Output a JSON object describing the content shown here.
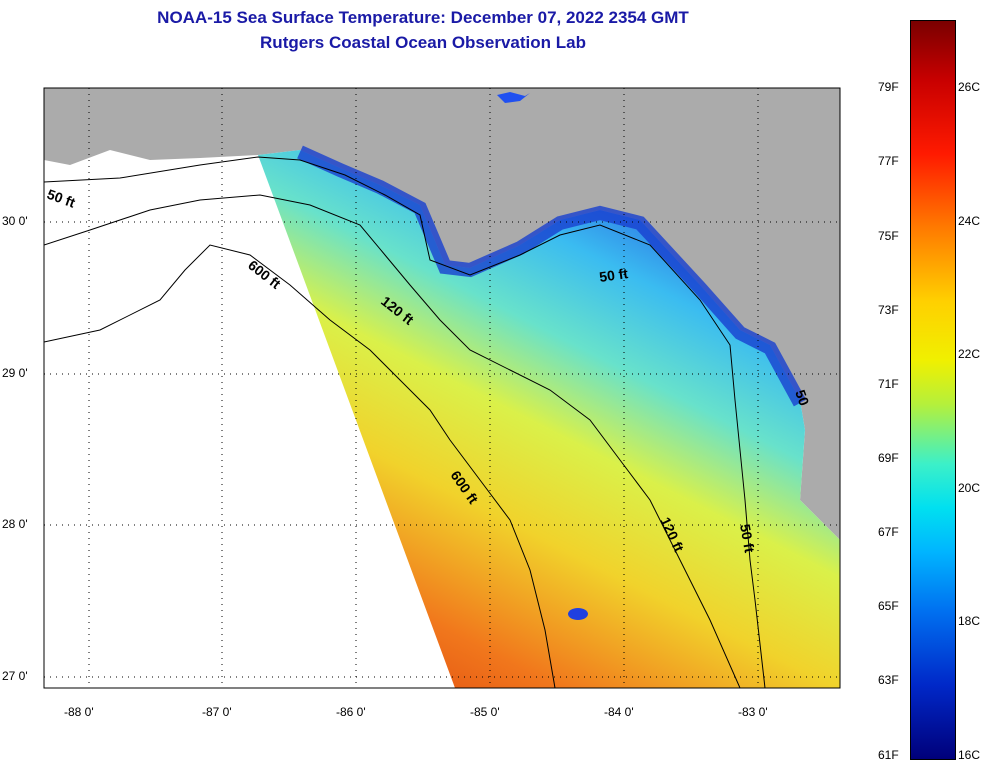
{
  "header": {
    "title": "NOAA-15 Sea Surface Temperature:  December 07, 2022 2354 GMT",
    "subtitle": "Rutgers Coastal Ocean Observation Lab"
  },
  "map": {
    "lon_ticks": [
      "-88 0'",
      "-87 0'",
      "-86 0'",
      "-85 0'",
      "-84 0'",
      "-83 0'"
    ],
    "lat_ticks": [
      "30 0'",
      "29 0'",
      "28 0'",
      "27 0'"
    ],
    "contours": {
      "c50_west": "50 ft",
      "c600_north": "600 ft",
      "c120_north": "120 ft",
      "c50_bigbend": "50 ft",
      "c600_south": "600 ft",
      "c120_south": "120 ft",
      "c50_south": "50 ft",
      "c50_east": "50"
    }
  },
  "colorbar": {
    "f_labels": [
      "79F",
      "77F",
      "75F",
      "73F",
      "71F",
      "69F",
      "67F",
      "65F",
      "63F",
      "61F"
    ],
    "c_labels": [
      "26C",
      "24C",
      "22C",
      "20C",
      "18C",
      "16C"
    ],
    "colors": [
      "#7a0000",
      "#ff1a00",
      "#ffd000",
      "#f0f000",
      "#00e0f0",
      "#0028c8",
      "#00007a"
    ]
  }
}
